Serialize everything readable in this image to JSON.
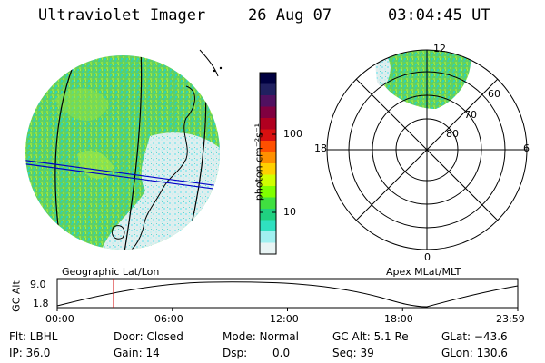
{
  "header": {
    "title": "Ultraviolet Imager",
    "date": "26 Aug 07",
    "time": "03:04:45 UT"
  },
  "left_panel": {
    "label": "Geographic Lat/Lon"
  },
  "right_panel": {
    "label": "Apex MLat/MLT",
    "mlt_labels": [
      "12",
      "18",
      "6",
      "0"
    ],
    "lat_labels": [
      "60",
      "70",
      "80"
    ]
  },
  "colorbar": {
    "unit_label": "photon cm⁻²s⁻¹",
    "tick_labels": [
      "100",
      "10"
    ],
    "colors": [
      "#000040",
      "#202060",
      "#501060",
      "#800040",
      "#b00020",
      "#d81010",
      "#ff5000",
      "#ff9000",
      "#ffd000",
      "#d0ff00",
      "#80ff00",
      "#40e040",
      "#20d080",
      "#30e0c0",
      "#a0f0f0",
      "#e8f4f4"
    ]
  },
  "altitude_plot": {
    "ylabel": "GC Alt",
    "y_ticks": [
      "9.0",
      "1.8"
    ],
    "x_ticks": [
      "00:00",
      "06:00",
      "12:00",
      "18:00",
      "23:59"
    ],
    "current_time_marker": "03:04"
  },
  "info": {
    "row1": [
      "Flt: LBHL",
      "Door: Closed",
      "Mode: Normal",
      "GC Alt: 5.1 Re",
      "GLat: −43.6"
    ],
    "row2": [
      "IP: 36.0",
      "Gain: 14",
      "Dsp:",
      "0.0",
      "Seq: 39",
      "GLon: 130.6"
    ]
  }
}
